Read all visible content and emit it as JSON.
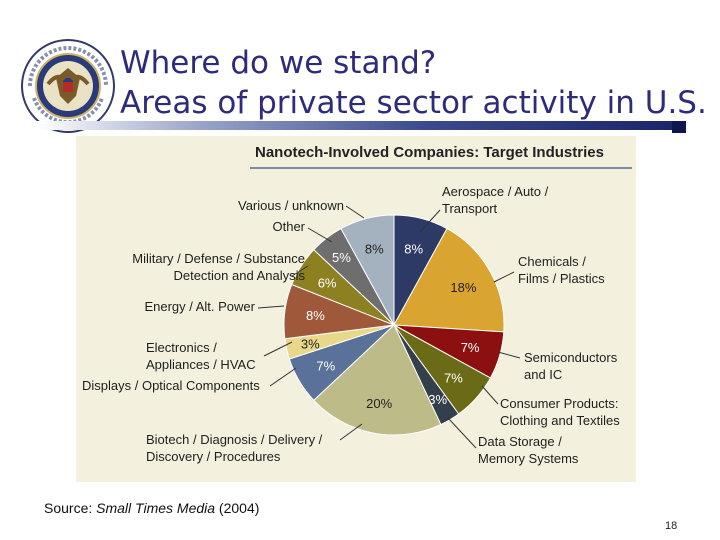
{
  "slide": {
    "title_line1": "Where do we stand?",
    "title_line2": "Areas of private sector activity in U.S.",
    "source_label": "Source: ",
    "source_name": "Small Times Media",
    "source_year": " (2004)",
    "page_number": "18"
  },
  "chart_data": {
    "type": "pie",
    "title": "Nanotech-Involved Companies: Target Industries",
    "unit": "%",
    "slices": [
      {
        "label": [
          "Aerospace / Auto /",
          "Transport"
        ],
        "value": 8,
        "display": "8%",
        "color": "#2e3a66"
      },
      {
        "label": [
          "Chemicals /",
          "Films / Plastics"
        ],
        "value": 18,
        "display": "18%",
        "color": "#d9a530"
      },
      {
        "label": [
          "Semiconductors",
          "and IC"
        ],
        "value": 7,
        "display": "7%",
        "color": "#8c1010"
      },
      {
        "label": [
          "Consumer Products:",
          "Clothing and Textiles"
        ],
        "value": 7,
        "display": "7%",
        "color": "#6b6a16"
      },
      {
        "label": [
          "Data Storage /",
          "Memory Systems"
        ],
        "value": 3,
        "display": "3%",
        "color": "#343f4c"
      },
      {
        "label": [
          "Biotech / Diagnosis / Delivery /",
          "Discovery / Procedures"
        ],
        "value": 20,
        "display": "20%",
        "color": "#bdbc88"
      },
      {
        "label": [
          "Displays / Optical Components"
        ],
        "value": 7,
        "display": "7%",
        "color": "#5a7299"
      },
      {
        "label": [
          "Electronics /",
          "Appliances / HVAC"
        ],
        "value": 3,
        "display": "3%",
        "color": "#e8d88a"
      },
      {
        "label": [
          "Energy / Alt. Power"
        ],
        "value": 8,
        "display": "8%",
        "color": "#a0583b"
      },
      {
        "label": [
          "Military / Defense / Substance",
          "Detection and Analysis"
        ],
        "value": 6,
        "display": "6%",
        "color": "#8c8020"
      },
      {
        "label": [
          "Other"
        ],
        "value": 5,
        "display": "5%",
        "color": "#6e6e6e"
      },
      {
        "label": [
          "Various / unknown"
        ],
        "value": 8,
        "display": "8%",
        "color": "#a4b2c0"
      }
    ]
  }
}
